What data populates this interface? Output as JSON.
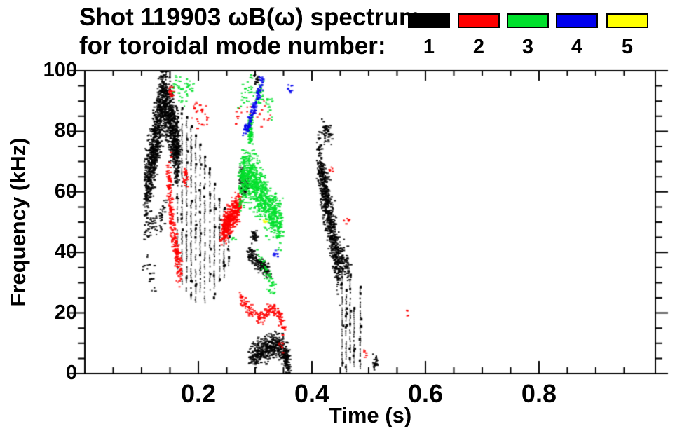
{
  "header": {
    "title_line1": "Shot 119903 ωB(ω) spectrum",
    "title_line2": "for toroidal mode number:",
    "legend": [
      {
        "label": "1",
        "color": "#000000"
      },
      {
        "label": "2",
        "color": "#ff0000"
      },
      {
        "label": "3",
        "color": "#00e02c"
      },
      {
        "label": "4",
        "color": "#0000ee"
      },
      {
        "label": "5",
        "color": "#ffff00"
      }
    ]
  },
  "chart_data": {
    "type": "scatter",
    "title": "Shot 119903 ωB(ω) spectrum for toroidal mode number: 1 2 3 4 5",
    "xlabel": "Time (s)",
    "ylabel": "Frequency (kHz)",
    "xlim": [
      0,
      1.005
    ],
    "ylim": [
      0,
      100
    ],
    "xticks": [
      0.2,
      0.4,
      0.6,
      0.8
    ],
    "xtick_labels": [
      "0.2",
      "0.4",
      "0.6",
      "0.8"
    ],
    "yticks": [
      0,
      20,
      40,
      60,
      80,
      100
    ],
    "ytick_labels": [
      "0",
      "20",
      "40",
      "60",
      "80",
      "100"
    ],
    "x_minor": 0.05,
    "y_minor": 5,
    "grid": false,
    "legend_position": "top-right",
    "series": [
      {
        "name": "n=1",
        "mode": 1,
        "color": "#000000",
        "features": [
          {
            "kind": "cloud",
            "path": [
              [
                0.105,
                60
              ],
              [
                0.115,
                70
              ],
              [
                0.125,
                80
              ],
              [
                0.135,
                92
              ],
              [
                0.145,
                88
              ],
              [
                0.155,
                78
              ],
              [
                0.163,
                72
              ]
            ],
            "spread": 11,
            "n": 1500
          },
          {
            "kind": "cloud",
            "path": [
              [
                0.105,
                46
              ],
              [
                0.118,
                50
              ],
              [
                0.13,
                50
              ],
              [
                0.14,
                55
              ]
            ],
            "spread": 5,
            "n": 70
          },
          {
            "kind": "cloud",
            "path": [
              [
                0.103,
                36
              ],
              [
                0.122,
                30
              ]
            ],
            "spread": 5,
            "n": 22
          },
          {
            "kind": "streaks",
            "items": [
              [
                0.162,
                35,
                85
              ],
              [
                0.17,
                30,
                88
              ],
              [
                0.178,
                27,
                85
              ],
              [
                0.186,
                25,
                82
              ],
              [
                0.194,
                24,
                79
              ],
              [
                0.202,
                26,
                76
              ],
              [
                0.21,
                23,
                72
              ],
              [
                0.219,
                28,
                68
              ],
              [
                0.227,
                25,
                63
              ],
              [
                0.236,
                30,
                58
              ],
              [
                0.244,
                30,
                55
              ],
              [
                0.252,
                36,
                52
              ]
            ]
          },
          {
            "kind": "cloud",
            "path": [
              [
                0.272,
                68
              ],
              [
                0.278,
                61
              ],
              [
                0.286,
                64
              ]
            ],
            "spread": 3,
            "n": 90
          },
          {
            "kind": "cloud",
            "path": [
              [
                0.287,
                40
              ],
              [
                0.3,
                37
              ],
              [
                0.312,
                36
              ],
              [
                0.323,
                33
              ]
            ],
            "spread": 2.5,
            "n": 160
          },
          {
            "kind": "cloud",
            "path": [
              [
                0.292,
                47
              ],
              [
                0.301,
                44
              ]
            ],
            "spread": 2,
            "n": 30
          },
          {
            "kind": "cloud",
            "path": [
              [
                0.29,
                6
              ],
              [
                0.305,
                7
              ],
              [
                0.32,
                9
              ],
              [
                0.335,
                10
              ],
              [
                0.35,
                7
              ],
              [
                0.358,
                3
              ]
            ],
            "spread": 4,
            "n": 550
          },
          {
            "kind": "cloud",
            "path": [
              [
                0.41,
                72
              ],
              [
                0.418,
                62
              ],
              [
                0.426,
                55
              ],
              [
                0.434,
                47
              ],
              [
                0.441,
                40
              ],
              [
                0.448,
                34
              ]
            ],
            "spread": 9,
            "n": 750
          },
          {
            "kind": "cloud",
            "path": [
              [
                0.415,
                82
              ],
              [
                0.432,
                78
              ]
            ],
            "spread": 4,
            "n": 55
          },
          {
            "kind": "cloud",
            "path": [
              [
                0.452,
                40
              ],
              [
                0.465,
                33
              ]
            ],
            "spread": 5,
            "n": 70
          },
          {
            "kind": "streaks",
            "items": [
              [
                0.452,
                3,
                35
              ],
              [
                0.459,
                1,
                28
              ],
              [
                0.466,
                4,
                33
              ],
              [
                0.473,
                2,
                22
              ],
              [
                0.484,
                2,
                29
              ]
            ]
          },
          {
            "kind": "cloud",
            "path": [
              [
                0.51,
                4
              ]
            ],
            "spread": 2.5,
            "n": 25
          },
          {
            "kind": "cloud",
            "path": [
              [
                0.3,
                97
              ]
            ],
            "spread": 2,
            "n": 18
          }
        ]
      },
      {
        "name": "n=2",
        "mode": 2,
        "color": "#ff0000",
        "features": [
          {
            "kind": "cloud",
            "path": [
              [
                0.146,
                68
              ],
              [
                0.149,
                58
              ],
              [
                0.153,
                48
              ],
              [
                0.16,
                40
              ],
              [
                0.167,
                33
              ]
            ],
            "spread": 5,
            "n": 260
          },
          {
            "kind": "cloud",
            "path": [
              [
                0.151,
                93
              ]
            ],
            "spread": 2.5,
            "n": 18
          },
          {
            "kind": "cloud",
            "path": [
              [
                0.176,
                65
              ]
            ],
            "spread": 3.5,
            "n": 25
          },
          {
            "kind": "cloud",
            "path": [
              [
                0.19,
                86
              ],
              [
                0.213,
                85
              ]
            ],
            "spread": 4,
            "n": 30
          },
          {
            "kind": "cloud",
            "path": [
              [
                0.265,
                85
              ],
              [
                0.298,
                84
              ],
              [
                0.325,
                87
              ]
            ],
            "spread": 5,
            "n": 26
          },
          {
            "kind": "cloud",
            "path": [
              [
                0.24,
                47
              ],
              [
                0.25,
                50
              ],
              [
                0.261,
                53
              ],
              [
                0.271,
                57
              ]
            ],
            "spread": 4.5,
            "n": 480
          },
          {
            "kind": "cloud",
            "path": [
              [
                0.272,
                25
              ],
              [
                0.29,
                21
              ],
              [
                0.31,
                18
              ],
              [
                0.326,
                22
              ],
              [
                0.34,
                20
              ],
              [
                0.349,
                15
              ]
            ],
            "spread": 2,
            "n": 190
          },
          {
            "kind": "cloud",
            "path": [
              [
                0.344,
                9
              ]
            ],
            "spread": 1.5,
            "n": 10
          },
          {
            "kind": "cloud",
            "path": [
              [
                0.432,
                68
              ]
            ],
            "spread": 1,
            "n": 6
          },
          {
            "kind": "cloud",
            "path": [
              [
                0.452,
                51
              ],
              [
                0.466,
                51
              ]
            ],
            "spread": 1,
            "n": 8
          },
          {
            "kind": "cloud",
            "path": [
              [
                0.49,
                6
              ]
            ],
            "spread": 1.5,
            "n": 6
          },
          {
            "kind": "cloud",
            "path": [
              [
                0.567,
                20
              ]
            ],
            "spread": 1,
            "n": 4
          }
        ]
      },
      {
        "name": "n=3",
        "mode": 3,
        "color": "#00e02c",
        "features": [
          {
            "kind": "cloud",
            "path": [
              [
                0.272,
                63
              ],
              [
                0.285,
                66
              ],
              [
                0.298,
                63
              ],
              [
                0.312,
                58
              ],
              [
                0.328,
                53
              ],
              [
                0.345,
                49
              ]
            ],
            "spread": 8,
            "n": 950
          },
          {
            "kind": "cloud",
            "path": [
              [
                0.29,
                80
              ]
            ],
            "spread": 5,
            "n": 90
          },
          {
            "kind": "cloud",
            "path": [
              [
                0.27,
                92
              ],
              [
                0.3,
                94
              ],
              [
                0.33,
                90
              ]
            ],
            "spread": 5,
            "n": 70
          },
          {
            "kind": "cloud",
            "path": [
              [
                0.155,
                97
              ],
              [
                0.172,
                92
              ],
              [
                0.188,
                96
              ]
            ],
            "spread": 3.5,
            "n": 50
          },
          {
            "kind": "cloud",
            "path": [
              [
                0.305,
                40
              ],
              [
                0.32,
                32
              ],
              [
                0.332,
                28
              ]
            ],
            "spread": 3,
            "n": 55
          },
          {
            "kind": "cloud",
            "path": [
              [
                0.26,
                45
              ]
            ],
            "spread": 1,
            "n": 5
          }
        ]
      },
      {
        "name": "n=4",
        "mode": 4,
        "color": "#0000ee",
        "features": [
          {
            "kind": "cloud",
            "path": [
              [
                0.28,
                80
              ],
              [
                0.287,
                83
              ],
              [
                0.295,
                87
              ],
              [
                0.303,
                92
              ],
              [
                0.31,
                97
              ]
            ],
            "spread": 1.5,
            "n": 130
          },
          {
            "kind": "cloud",
            "path": [
              [
                0.334,
                40
              ]
            ],
            "spread": 2,
            "n": 10
          },
          {
            "kind": "cloud",
            "path": [
              [
                0.36,
                94
              ]
            ],
            "spread": 1.5,
            "n": 10
          }
        ]
      },
      {
        "name": "n=5",
        "mode": 5,
        "color": "#ffff00",
        "features": [
          {
            "kind": "cloud",
            "path": [
              [
                0.317,
                50.5
              ]
            ],
            "spread": 0.8,
            "n": 6
          }
        ]
      }
    ]
  }
}
